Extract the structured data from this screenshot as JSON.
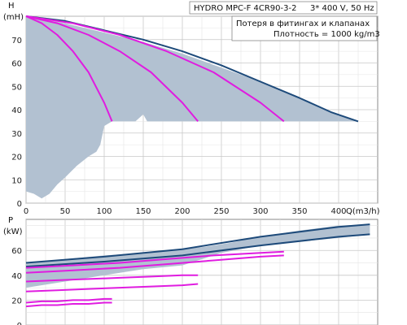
{
  "header": {
    "model": "HYDRO MPC-F 4CR90-3-2",
    "supply": "3* 400 V, 50 Hz",
    "note_line1": "Потеря в фитингах и клапанах",
    "note_line2": "Плотность = 1000 kg/m3"
  },
  "colors": {
    "envelope_fill": "#b2c1d1",
    "max_curve": "#1d4a7a",
    "pump_curve": "#e01ce0",
    "grid": "#c8c8c8",
    "frame": "#888888"
  },
  "chart_data": [
    {
      "type": "line",
      "panel": "head",
      "ylabel": "H",
      "yunit": "(mH)",
      "xlabel": "Q(m3/h)",
      "xlim": [
        0,
        450
      ],
      "ylim": [
        0,
        80
      ],
      "xticks": [
        0,
        50,
        100,
        150,
        200,
        250,
        300,
        350,
        400
      ],
      "yticks": [
        0,
        10,
        20,
        30,
        40,
        50,
        60,
        70
      ],
      "ymax_label": "H",
      "grid": true,
      "envelope": [
        [
          0,
          80
        ],
        [
          50,
          77
        ],
        [
          100,
          73
        ],
        [
          150,
          69
        ],
        [
          200,
          64
        ],
        [
          250,
          58
        ],
        [
          300,
          52
        ],
        [
          350,
          45
        ],
        [
          390,
          39
        ],
        [
          425,
          35
        ],
        [
          400,
          35
        ],
        [
          350,
          35
        ],
        [
          300,
          35
        ],
        [
          250,
          35
        ],
        [
          210,
          35
        ],
        [
          190,
          35
        ],
        [
          170,
          35
        ],
        [
          155,
          35
        ],
        [
          150,
          38
        ],
        [
          140,
          35
        ],
        [
          130,
          35
        ],
        [
          120,
          35
        ],
        [
          110,
          35
        ],
        [
          100,
          33
        ],
        [
          95,
          25
        ],
        [
          90,
          22
        ],
        [
          80,
          20
        ],
        [
          65,
          16
        ],
        [
          50,
          11
        ],
        [
          40,
          8
        ],
        [
          30,
          4
        ],
        [
          20,
          2
        ],
        [
          10,
          4
        ],
        [
          0,
          5
        ]
      ],
      "series": [
        {
          "role": "max",
          "x": [
            0,
            50,
            100,
            150,
            200,
            250,
            300,
            350,
            390,
            425
          ],
          "y": [
            80,
            78,
            74,
            70,
            65,
            59,
            52,
            45,
            39,
            35
          ]
        },
        {
          "role": "pump",
          "x": [
            0,
            20,
            40,
            60,
            80,
            100,
            110
          ],
          "y": [
            80,
            77,
            72,
            65,
            56,
            43,
            35
          ]
        },
        {
          "role": "pump",
          "x": [
            0,
            40,
            80,
            120,
            160,
            200,
            220
          ],
          "y": [
            80,
            77,
            72,
            65,
            56,
            43,
            35
          ]
        },
        {
          "role": "pump",
          "x": [
            0,
            60,
            120,
            180,
            240,
            300,
            330
          ],
          "y": [
            80,
            77,
            72,
            65,
            56,
            43,
            35
          ]
        }
      ]
    },
    {
      "type": "line",
      "panel": "power",
      "ylabel": "P",
      "yunit": "(kW)",
      "xlim": [
        0,
        450
      ],
      "ylim": [
        0,
        85
      ],
      "yticks": [
        0,
        20,
        40,
        60
      ],
      "grid": true,
      "envelope": [
        [
          0,
          50
        ],
        [
          50,
          53
        ],
        [
          100,
          56
        ],
        [
          150,
          58
        ],
        [
          200,
          61
        ],
        [
          230,
          63
        ],
        [
          260,
          66
        ],
        [
          300,
          71
        ],
        [
          350,
          76
        ],
        [
          400,
          80
        ],
        [
          440,
          81
        ],
        [
          440,
          73
        ],
        [
          400,
          70
        ],
        [
          350,
          67
        ],
        [
          300,
          64
        ],
        [
          250,
          58
        ],
        [
          200,
          48
        ],
        [
          150,
          45
        ],
        [
          100,
          40
        ],
        [
          50,
          35
        ],
        [
          0,
          30
        ]
      ],
      "series": [
        {
          "role": "max",
          "x": [
            0,
            100,
            200,
            300,
            400,
            440
          ],
          "y": [
            50,
            55,
            61,
            71,
            79,
            81
          ]
        },
        {
          "role": "max",
          "x": [
            0,
            100,
            200,
            300,
            400,
            440
          ],
          "y": [
            47,
            51,
            56,
            64,
            71,
            73
          ]
        },
        {
          "role": "pump",
          "x": [
            0,
            60,
            120,
            180,
            240,
            300,
            330
          ],
          "y": [
            46,
            48,
            50,
            53,
            56,
            58,
            59
          ]
        },
        {
          "role": "pump",
          "x": [
            0,
            60,
            120,
            180,
            240,
            300,
            330
          ],
          "y": [
            42,
            44,
            46,
            49,
            52,
            55,
            56
          ]
        },
        {
          "role": "pump",
          "x": [
            0,
            40,
            80,
            120,
            160,
            200,
            220
          ],
          "y": [
            35,
            36,
            37,
            38,
            39,
            40,
            40
          ]
        },
        {
          "role": "pump",
          "x": [
            0,
            40,
            80,
            120,
            160,
            200,
            220
          ],
          "y": [
            27,
            28,
            29,
            30,
            31,
            32,
            33
          ]
        },
        {
          "role": "pump",
          "x": [
            0,
            20,
            40,
            60,
            80,
            100,
            110
          ],
          "y": [
            18,
            19,
            19,
            20,
            20,
            21,
            21
          ]
        },
        {
          "role": "pump",
          "x": [
            0,
            20,
            40,
            60,
            80,
            100,
            110
          ],
          "y": [
            15,
            16,
            16,
            17,
            17,
            18,
            18
          ]
        }
      ]
    }
  ]
}
